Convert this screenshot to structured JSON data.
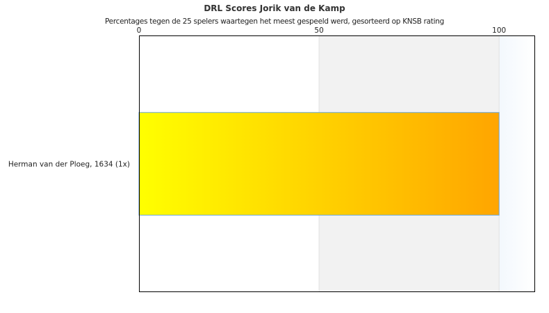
{
  "chart_data": {
    "type": "bar",
    "orientation": "horizontal",
    "title": "DRL Scores Jorik van de Kamp",
    "subtitle": "Percentages tegen de 25 spelers waartegen het meest gespeeld werd, gesorteerd op KNSB rating",
    "categories": [
      "Herman van der Ploeg, 1634 (1x)"
    ],
    "values": [
      100
    ],
    "xlim": [
      0,
      110
    ],
    "xticks": [
      "0",
      "50",
      "100"
    ],
    "xtick_values": [
      0,
      50,
      100
    ],
    "axis_position": "top",
    "background_bands": [
      {
        "from": 0,
        "to": 50,
        "color": "#ffffff"
      },
      {
        "from": 50,
        "to": 100,
        "color": "#f2f2f2"
      },
      {
        "from": 100,
        "to": 110,
        "color": "#f5f9fd"
      }
    ],
    "bar_gradient": [
      "#ffff00",
      "#ffa500"
    ],
    "bar_border_color": "#6aa6d8"
  }
}
